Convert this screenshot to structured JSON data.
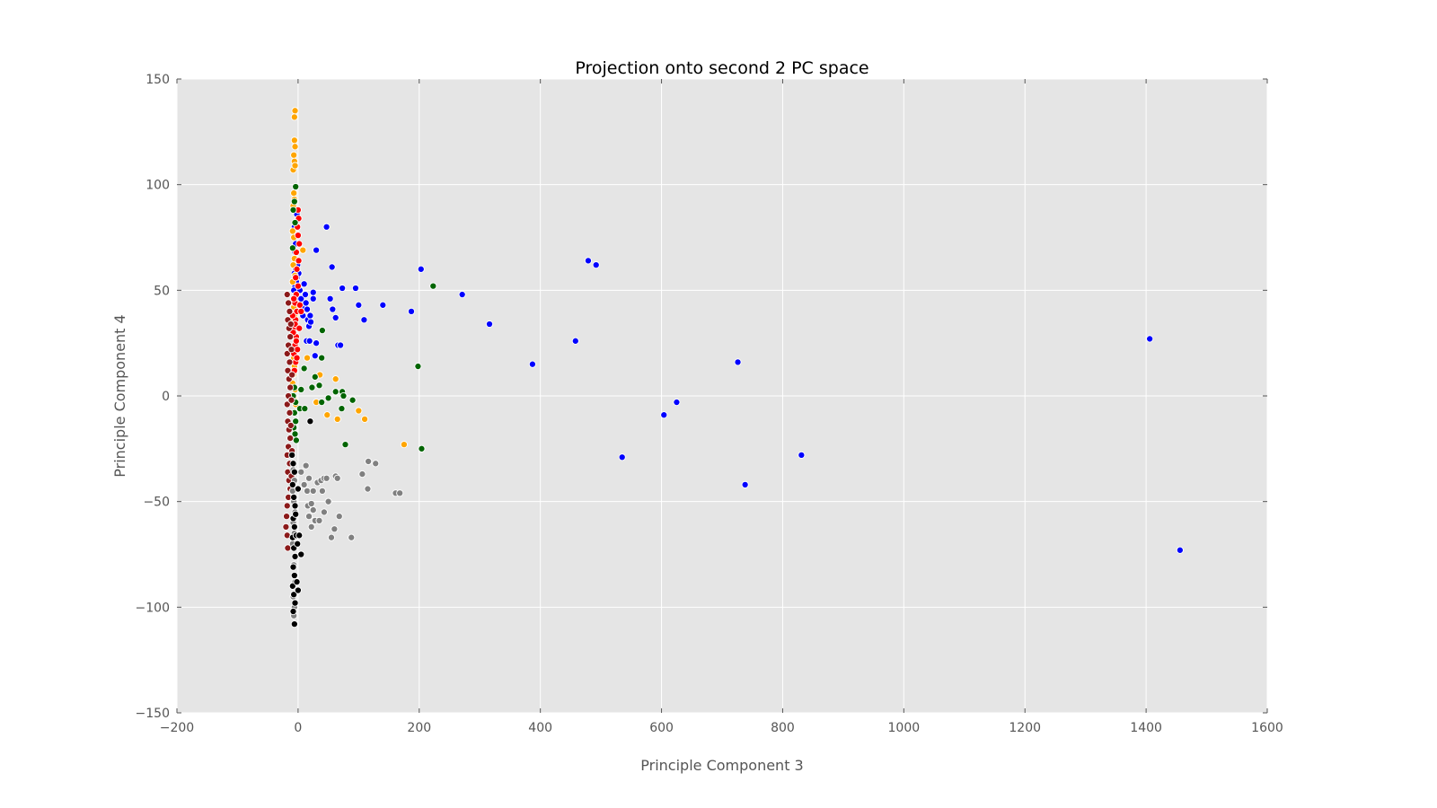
{
  "chart_data": {
    "type": "scatter",
    "title": "Projection onto second 2 PC space",
    "xlabel": "Principle Component 3",
    "ylabel": "Principle Component 4",
    "xlim": [
      -200,
      1600
    ],
    "ylim": [
      -150,
      150
    ],
    "xticks": [
      -200,
      0,
      200,
      400,
      600,
      800,
      1000,
      1200,
      1400,
      1600
    ],
    "yticks": [
      -150,
      -100,
      -50,
      0,
      50,
      100,
      150
    ],
    "xtick_labels": [
      "−200",
      "0",
      "200",
      "400",
      "600",
      "800",
      "1000",
      "1200",
      "1400",
      "1600"
    ],
    "ytick_labels": [
      "−150",
      "−100",
      "−50",
      "0",
      "50",
      "100",
      "150"
    ],
    "grid": true,
    "background_color": "#e5e5e5",
    "grid_color": "#ffffff",
    "legend": "none",
    "series": [
      {
        "color": "#0000ff",
        "points": [
          [
            -6,
            80
          ],
          [
            -5,
            76
          ],
          [
            -4,
            72
          ],
          [
            -5,
            68
          ],
          [
            -3,
            64
          ],
          [
            -4,
            60
          ],
          [
            -2,
            56
          ],
          [
            -5,
            52
          ],
          [
            -3,
            48
          ],
          [
            -6,
            44
          ],
          [
            -2,
            40
          ],
          [
            -4,
            36
          ],
          [
            -1,
            62
          ],
          [
            -6,
            58
          ],
          [
            -3,
            54
          ],
          [
            -7,
            50
          ],
          [
            -5,
            46
          ],
          [
            -2,
            42
          ],
          [
            0,
            84
          ],
          [
            -2,
            86
          ],
          [
            1,
            58
          ],
          [
            3,
            50
          ],
          [
            5,
            46
          ],
          [
            8,
            38
          ],
          [
            6,
            42
          ],
          [
            10,
            53
          ],
          [
            12,
            48
          ],
          [
            13,
            44
          ],
          [
            15,
            41
          ],
          [
            16,
            36
          ],
          [
            18,
            33
          ],
          [
            20,
            38
          ],
          [
            21,
            35
          ],
          [
            25,
            49
          ],
          [
            25,
            46
          ],
          [
            28,
            19
          ],
          [
            30,
            25
          ],
          [
            14,
            26
          ],
          [
            19,
            26
          ],
          [
            47,
            80
          ],
          [
            30,
            69
          ],
          [
            56,
            61
          ],
          [
            53,
            46
          ],
          [
            57,
            41
          ],
          [
            62,
            37
          ],
          [
            66,
            24
          ],
          [
            70,
            24
          ],
          [
            73,
            51
          ],
          [
            95,
            51
          ],
          [
            100,
            43
          ],
          [
            109,
            36
          ],
          [
            140,
            43
          ],
          [
            187,
            40
          ],
          [
            203,
            60
          ],
          [
            271,
            48
          ],
          [
            316,
            34
          ],
          [
            387,
            15
          ],
          [
            458,
            26
          ],
          [
            479,
            64
          ],
          [
            492,
            62
          ],
          [
            535,
            -29
          ],
          [
            604,
            -9
          ],
          [
            625,
            -3
          ],
          [
            726,
            16
          ],
          [
            738,
            -42
          ],
          [
            831,
            -28
          ],
          [
            1406,
            27
          ],
          [
            1456,
            -73
          ]
        ]
      },
      {
        "color": "#ffa500",
        "points": [
          [
            -5,
            135
          ],
          [
            -6,
            132
          ],
          [
            -6,
            121
          ],
          [
            -5,
            118
          ],
          [
            -7,
            114
          ],
          [
            -6,
            111
          ],
          [
            -8,
            107
          ],
          [
            -5,
            109
          ],
          [
            -7,
            96
          ],
          [
            -6,
            93
          ],
          [
            -8,
            90
          ],
          [
            -9,
            78
          ],
          [
            -7,
            75
          ],
          [
            -6,
            65
          ],
          [
            -8,
            62
          ],
          [
            -5,
            57
          ],
          [
            -9,
            54
          ],
          [
            -7,
            42
          ],
          [
            -6,
            38
          ],
          [
            -8,
            35
          ],
          [
            -5,
            22
          ],
          [
            -7,
            18
          ],
          [
            -6,
            14
          ],
          [
            -8,
            10
          ],
          [
            -9,
            6
          ],
          [
            -5,
            3
          ],
          [
            -7,
            -1
          ],
          [
            -4,
            -4
          ],
          [
            8,
            69
          ],
          [
            15,
            18
          ],
          [
            36,
            10
          ],
          [
            62,
            8
          ],
          [
            30,
            -3
          ],
          [
            48,
            -9
          ],
          [
            65,
            -11
          ],
          [
            100,
            -7
          ],
          [
            110,
            -11
          ],
          [
            175,
            -23
          ]
        ]
      },
      {
        "color": "#ff0000",
        "points": [
          [
            0,
            88
          ],
          [
            1,
            84
          ],
          [
            -1,
            80
          ],
          [
            0,
            76
          ],
          [
            2,
            72
          ],
          [
            -3,
            68
          ],
          [
            1,
            64
          ],
          [
            -2,
            60
          ],
          [
            -4,
            56
          ],
          [
            0,
            52
          ],
          [
            -3,
            48
          ],
          [
            -5,
            44
          ],
          [
            -2,
            40
          ],
          [
            -4,
            36
          ],
          [
            -6,
            32
          ],
          [
            -3,
            28
          ],
          [
            -5,
            24
          ],
          [
            -7,
            20
          ],
          [
            -4,
            16
          ],
          [
            -6,
            12
          ],
          [
            -8,
            30
          ],
          [
            -9,
            38
          ],
          [
            -7,
            46
          ],
          [
            -5,
            34
          ],
          [
            -3,
            26
          ],
          [
            -1,
            22
          ],
          [
            3,
            43
          ],
          [
            5,
            40
          ],
          [
            2,
            32
          ],
          [
            -2,
            18
          ]
        ]
      },
      {
        "color": "#006400",
        "points": [
          [
            -4,
            99
          ],
          [
            -6,
            92
          ],
          [
            -8,
            88
          ],
          [
            -5,
            82
          ],
          [
            -9,
            70
          ],
          [
            -6,
            -8
          ],
          [
            -4,
            -12
          ],
          [
            -7,
            -15
          ],
          [
            -5,
            -18
          ],
          [
            -3,
            -21
          ],
          [
            -6,
            4
          ],
          [
            -8,
            0
          ],
          [
            -4,
            -3
          ],
          [
            3,
            -6
          ],
          [
            5,
            3
          ],
          [
            10,
            13
          ],
          [
            11,
            -6
          ],
          [
            23,
            4
          ],
          [
            28,
            9
          ],
          [
            35,
            5
          ],
          [
            40,
            31
          ],
          [
            39,
            18
          ],
          [
            39,
            -3
          ],
          [
            50,
            -1
          ],
          [
            62,
            2
          ],
          [
            73,
            2
          ],
          [
            75,
            0
          ],
          [
            72,
            -6
          ],
          [
            78,
            -23
          ],
          [
            90,
            -2
          ],
          [
            198,
            14
          ],
          [
            204,
            -25
          ],
          [
            223,
            52
          ]
        ]
      },
      {
        "color": "#8b1a1a",
        "points": [
          [
            -18,
            48
          ],
          [
            -16,
            44
          ],
          [
            -14,
            40
          ],
          [
            -17,
            36
          ],
          [
            -15,
            32
          ],
          [
            -13,
            28
          ],
          [
            -16,
            24
          ],
          [
            -18,
            20
          ],
          [
            -14,
            16
          ],
          [
            -17,
            12
          ],
          [
            -15,
            8
          ],
          [
            -13,
            4
          ],
          [
            -16,
            0
          ],
          [
            -18,
            -4
          ],
          [
            -14,
            -8
          ],
          [
            -17,
            -12
          ],
          [
            -15,
            -16
          ],
          [
            -13,
            -20
          ],
          [
            -16,
            -24
          ],
          [
            -18,
            -28
          ],
          [
            -14,
            -32
          ],
          [
            -17,
            -36
          ],
          [
            -15,
            -40
          ],
          [
            -13,
            -44
          ],
          [
            -16,
            -48
          ],
          [
            -18,
            -52
          ],
          [
            -19,
            -57
          ],
          [
            -20,
            -62
          ],
          [
            -18,
            -66
          ],
          [
            -17,
            -72
          ],
          [
            -12,
            34
          ],
          [
            -11,
            22
          ],
          [
            -10,
            10
          ],
          [
            -11,
            -2
          ],
          [
            -12,
            -14
          ],
          [
            -10,
            -26
          ],
          [
            -11,
            -38
          ]
        ]
      },
      {
        "color": "#808080",
        "points": [
          [
            -8,
            -35
          ],
          [
            -6,
            -40
          ],
          [
            -9,
            -45
          ],
          [
            -7,
            -50
          ],
          [
            -5,
            -55
          ],
          [
            -8,
            -60
          ],
          [
            -6,
            -65
          ],
          [
            -9,
            -70
          ],
          [
            -7,
            -80
          ],
          [
            -5,
            -88
          ],
          [
            -8,
            -95
          ],
          [
            -6,
            -100
          ],
          [
            -7,
            -104
          ],
          [
            5,
            -36
          ],
          [
            10,
            -42
          ],
          [
            13,
            -33
          ],
          [
            15,
            -45
          ],
          [
            18,
            -39
          ],
          [
            16,
            -52
          ],
          [
            22,
            -51
          ],
          [
            18,
            -57
          ],
          [
            25,
            -45
          ],
          [
            25,
            -54
          ],
          [
            28,
            -59
          ],
          [
            22,
            -62
          ],
          [
            32,
            -41
          ],
          [
            35,
            -59
          ],
          [
            38,
            -40
          ],
          [
            40,
            -45
          ],
          [
            43,
            -39
          ],
          [
            47,
            -39
          ],
          [
            43,
            -55
          ],
          [
            50,
            -50
          ],
          [
            55,
            -67
          ],
          [
            62,
            -38
          ],
          [
            60,
            -63
          ],
          [
            65,
            -39
          ],
          [
            68,
            -57
          ],
          [
            88,
            -67
          ],
          [
            106,
            -37
          ],
          [
            116,
            -31
          ],
          [
            115,
            -44
          ],
          [
            128,
            -32
          ],
          [
            161,
            -46
          ],
          [
            168,
            -46
          ]
        ]
      },
      {
        "color": "#000000",
        "points": [
          [
            -10,
            -28
          ],
          [
            -8,
            -32
          ],
          [
            -6,
            -36
          ],
          [
            -9,
            -42
          ],
          [
            -7,
            -48
          ],
          [
            -5,
            -52
          ],
          [
            -8,
            -58
          ],
          [
            -6,
            -62
          ],
          [
            -9,
            -67
          ],
          [
            -7,
            -72
          ],
          [
            -5,
            -76
          ],
          [
            -8,
            -81
          ],
          [
            -6,
            -85
          ],
          [
            -9,
            -90
          ],
          [
            -7,
            -94
          ],
          [
            -5,
            -98
          ],
          [
            -8,
            -102
          ],
          [
            -6,
            -108
          ],
          [
            -4,
            -56
          ],
          [
            -3,
            -66
          ],
          [
            -2,
            -88
          ],
          [
            0,
            -44
          ],
          [
            -1,
            -70
          ],
          [
            0,
            -92
          ],
          [
            2,
            -66
          ],
          [
            5,
            -75
          ],
          [
            20,
            -12
          ]
        ]
      }
    ]
  }
}
